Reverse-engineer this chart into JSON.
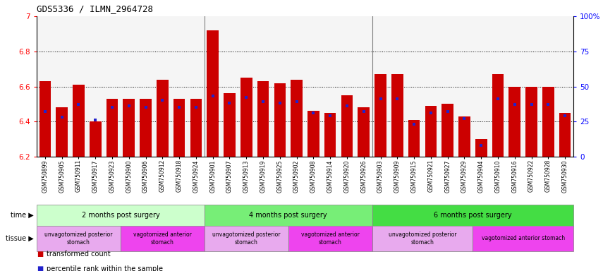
{
  "title": "GDS5336 / ILMN_2964728",
  "samples": [
    "GSM750899",
    "GSM750905",
    "GSM750911",
    "GSM750917",
    "GSM750923",
    "GSM750900",
    "GSM750906",
    "GSM750912",
    "GSM750918",
    "GSM750924",
    "GSM750901",
    "GSM750907",
    "GSM750913",
    "GSM750919",
    "GSM750925",
    "GSM750902",
    "GSM750908",
    "GSM750914",
    "GSM750920",
    "GSM750926",
    "GSM750903",
    "GSM750909",
    "GSM750915",
    "GSM750921",
    "GSM750927",
    "GSM750929",
    "GSM750904",
    "GSM750910",
    "GSM750916",
    "GSM750922",
    "GSM750928",
    "GSM750930"
  ],
  "bar_values": [
    6.63,
    6.48,
    6.61,
    6.4,
    6.53,
    6.53,
    6.53,
    6.64,
    6.53,
    6.53,
    6.92,
    6.56,
    6.65,
    6.63,
    6.62,
    6.64,
    6.46,
    6.45,
    6.55,
    6.48,
    6.67,
    6.67,
    6.41,
    6.49,
    6.5,
    6.43,
    6.3,
    6.67,
    6.6,
    6.6,
    6.6,
    6.45
  ],
  "percentile_values": [
    32,
    28,
    37,
    26,
    35,
    36,
    35,
    40,
    35,
    35,
    43,
    38,
    42,
    39,
    38,
    39,
    31,
    29,
    36,
    32,
    41,
    41,
    23,
    31,
    32,
    27,
    8,
    41,
    37,
    37,
    37,
    29
  ],
  "ymin": 6.2,
  "ymax": 7.0,
  "yticks_left": [
    6.2,
    6.4,
    6.6,
    6.8,
    7.0
  ],
  "yticks_right_pct": [
    0,
    25,
    50,
    75,
    100
  ],
  "yticks_right_labels": [
    "0",
    "25",
    "50",
    "75",
    "100%"
  ],
  "bar_color": "#cc0000",
  "percentile_color": "#2222cc",
  "bar_width": 0.7,
  "grid_lines": [
    6.4,
    6.6,
    6.8
  ],
  "separators": [
    9.5,
    19.5
  ],
  "time_groups": [
    {
      "label": "2 months post surgery",
      "start": 0,
      "end": 9,
      "color": "#ccffcc"
    },
    {
      "label": "4 months post surgery",
      "start": 10,
      "end": 19,
      "color": "#77ee77"
    },
    {
      "label": "6 months post surgery",
      "start": 20,
      "end": 31,
      "color": "#44dd44"
    }
  ],
  "tissue_groups": [
    {
      "label": "unvagotomized posterior\nstomach",
      "start": 0,
      "end": 4,
      "color": "#e8aaee"
    },
    {
      "label": "vagotomized anterior\nstomach",
      "start": 5,
      "end": 9,
      "color": "#ee44ee"
    },
    {
      "label": "unvagotomized posterior\nstomach",
      "start": 10,
      "end": 14,
      "color": "#e8aaee"
    },
    {
      "label": "vagotomized anterior\nstomach",
      "start": 15,
      "end": 19,
      "color": "#ee44ee"
    },
    {
      "label": "unvagotomized posterior\nstomach",
      "start": 20,
      "end": 25,
      "color": "#e8aaee"
    },
    {
      "label": "vagotomized anterior stomach",
      "start": 26,
      "end": 31,
      "color": "#ee44ee"
    }
  ],
  "legend": [
    {
      "label": "transformed count",
      "color": "#cc0000"
    },
    {
      "label": "percentile rank within the sample",
      "color": "#2222cc"
    }
  ]
}
